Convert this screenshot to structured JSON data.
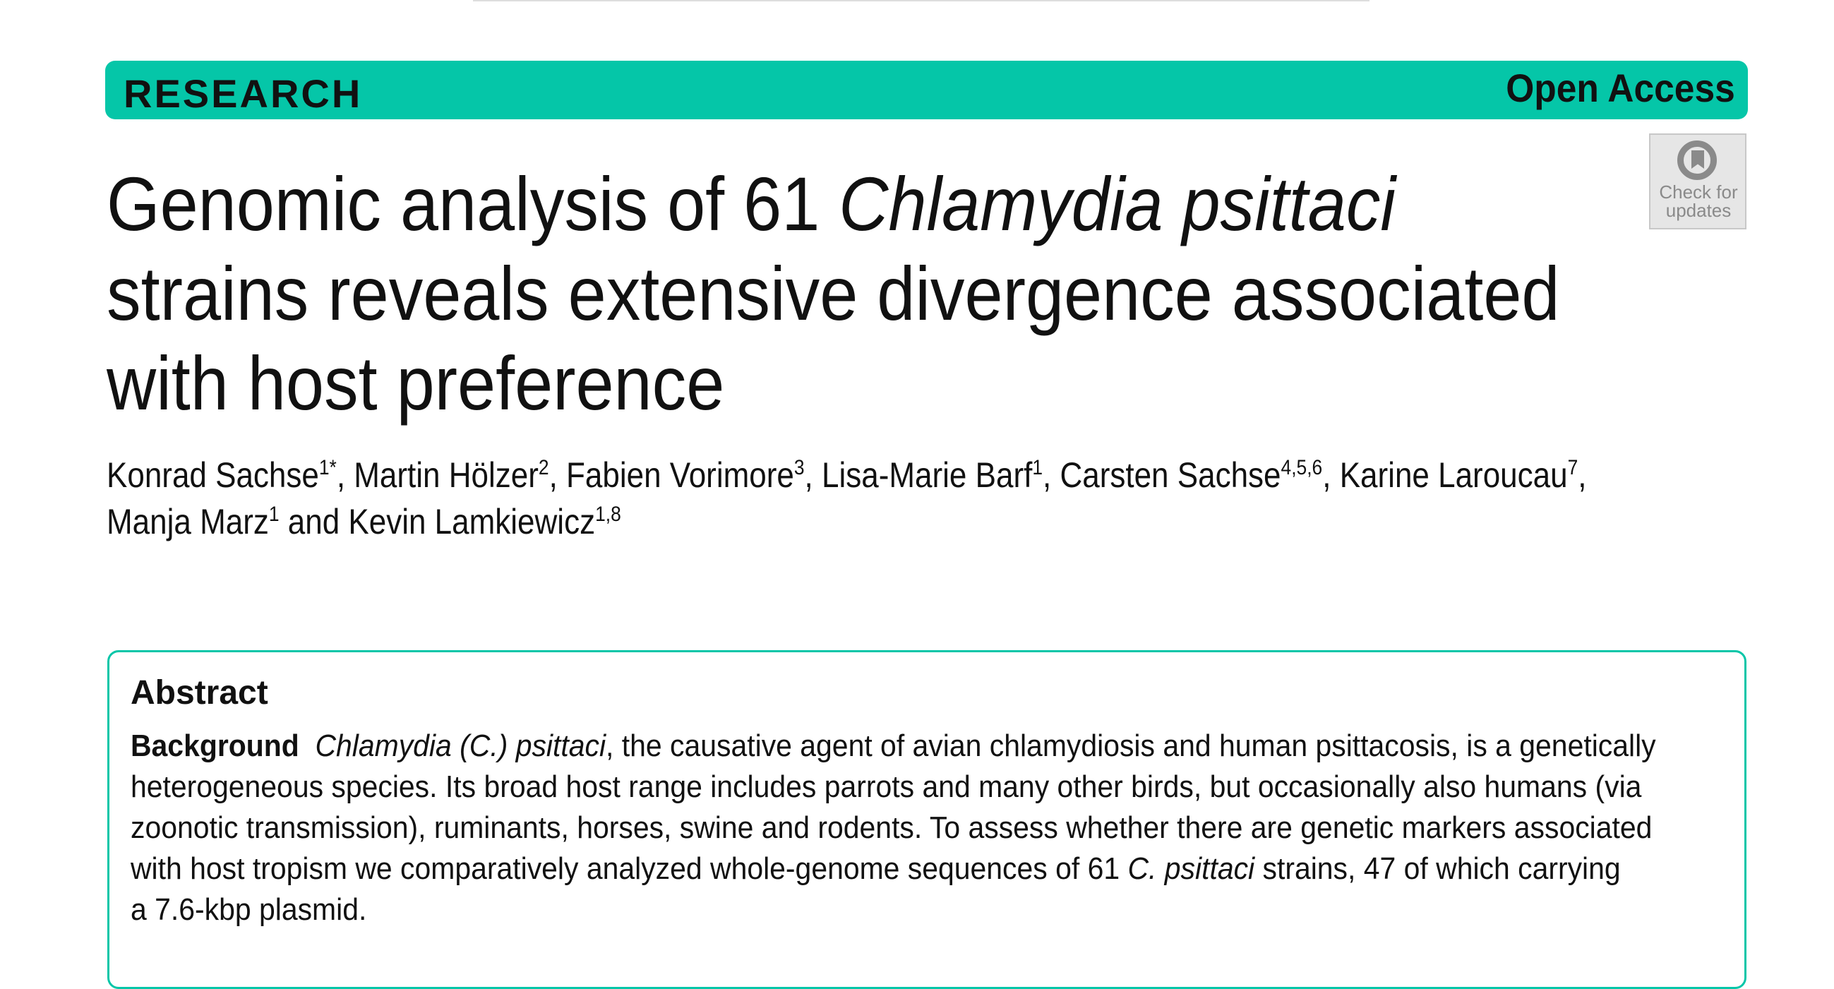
{
  "header": {
    "section": "RESEARCH",
    "access": "Open Access"
  },
  "badge": {
    "lines": [
      "Check for",
      "updates"
    ]
  },
  "title": {
    "lines": [
      [
        {
          "text": "Genomic analysis of 61 ",
          "style": "normal"
        },
        {
          "text": "Chlamydia psittaci",
          "style": "italic"
        }
      ],
      [
        {
          "text": "strains reveals extensive divergence associated",
          "style": "normal"
        }
      ],
      [
        {
          "text": "with host preference",
          "style": "normal"
        }
      ]
    ]
  },
  "authors": {
    "lines": [
      [
        {
          "text": "Konrad Sachse",
          "style": "normal"
        },
        {
          "text": "1*",
          "style": "sup"
        },
        {
          "text": ", Martin Hölzer",
          "style": "normal"
        },
        {
          "text": "2",
          "style": "sup"
        },
        {
          "text": ", Fabien Vorimore",
          "style": "normal"
        },
        {
          "text": "3",
          "style": "sup"
        },
        {
          "text": ", Lisa-Marie Barf",
          "style": "normal"
        },
        {
          "text": "1",
          "style": "sup"
        },
        {
          "text": ", Carsten Sachse",
          "style": "normal"
        },
        {
          "text": "4,5,6",
          "style": "sup"
        },
        {
          "text": ", Karine Laroucau",
          "style": "normal"
        },
        {
          "text": "7",
          "style": "sup"
        },
        {
          "text": ",",
          "style": "normal"
        }
      ],
      [
        {
          "text": "Manja Marz",
          "style": "normal"
        },
        {
          "text": "1",
          "style": "sup"
        },
        {
          "text": " and Kevin Lamkiewicz",
          "style": "normal"
        },
        {
          "text": "1,8",
          "style": "sup"
        }
      ]
    ]
  },
  "abstract": {
    "heading": "Abstract",
    "lines": [
      [
        {
          "text": "Background",
          "style": "bold"
        },
        {
          "text": "  ",
          "style": "normal"
        },
        {
          "text": "Chlamydia (C.) psittaci",
          "style": "italic"
        },
        {
          "text": ", the causative agent of avian chlamydiosis and human psittacosis, is a genetically",
          "style": "normal"
        }
      ],
      [
        {
          "text": "heterogeneous species. Its broad host range includes parrots and many other birds, but occasionally also humans (via",
          "style": "normal"
        }
      ],
      [
        {
          "text": "zoonotic transmission), ruminants, horses, swine and rodents. To assess whether there are genetic markers associated",
          "style": "normal"
        }
      ],
      [
        {
          "text": "with host tropism we comparatively analyzed whole-genome sequences of 61 ",
          "style": "normal"
        },
        {
          "text": "C. psittaci",
          "style": "italic"
        },
        {
          "text": " strains, 47 of which carrying",
          "style": "normal"
        }
      ],
      [
        {
          "text": "a 7.6-kbp plasmid.",
          "style": "normal"
        }
      ]
    ]
  }
}
